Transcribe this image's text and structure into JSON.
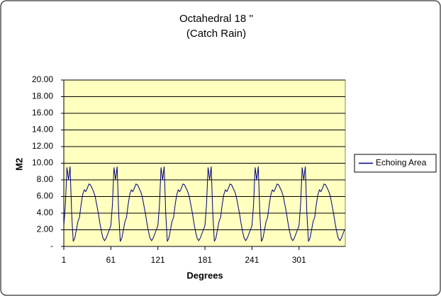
{
  "chart_data": {
    "type": "line",
    "title": "Octahedral 18 ''",
    "subtitle": "(Catch Rain)",
    "x_label": "Degrees",
    "y_label": "M2",
    "xlim": [
      1,
      360
    ],
    "xticks": [
      1,
      61,
      121,
      181,
      241,
      301
    ],
    "ylim": [
      0,
      20
    ],
    "yticks": [
      {
        "value": 0,
        "label": "-"
      },
      {
        "value": 2,
        "label": "2.00"
      },
      {
        "value": 4,
        "label": "4.00"
      },
      {
        "value": 6,
        "label": "6.00"
      },
      {
        "value": 8,
        "label": "8.00"
      },
      {
        "value": 10,
        "label": "10.00"
      },
      {
        "value": 12,
        "label": "12.00"
      },
      {
        "value": 14,
        "label": "14.00"
      },
      {
        "value": 16,
        "label": "16.00"
      },
      {
        "value": 18,
        "label": "18.00"
      },
      {
        "value": 20,
        "label": "20.00"
      }
    ],
    "grid": true,
    "legend": "right",
    "plot_background": "#ffffc0",
    "x": [
      1,
      3,
      5,
      7,
      9,
      11,
      13,
      15,
      17,
      19,
      21,
      23,
      25,
      27,
      29,
      31,
      33,
      35,
      37,
      39,
      41,
      43,
      45,
      47,
      49,
      51,
      53,
      55,
      57,
      59,
      61,
      63,
      65,
      67,
      69,
      71,
      73,
      75,
      77,
      79,
      81,
      83,
      85,
      87,
      89,
      91,
      93,
      95,
      97,
      99,
      101,
      103,
      105,
      107,
      109,
      111,
      113,
      115,
      117,
      119,
      121,
      123,
      125,
      127,
      129,
      131,
      133,
      135,
      137,
      139,
      141,
      143,
      145,
      147,
      149,
      151,
      153,
      155,
      157,
      159,
      161,
      163,
      165,
      167,
      169,
      171,
      173,
      175,
      177,
      179,
      181,
      183,
      185,
      187,
      189,
      191,
      193,
      195,
      197,
      199,
      201,
      203,
      205,
      207,
      209,
      211,
      213,
      215,
      217,
      219,
      221,
      223,
      225,
      227,
      229,
      231,
      233,
      235,
      237,
      239,
      241,
      243,
      245,
      247,
      249,
      251,
      253,
      255,
      257,
      259,
      261,
      263,
      265,
      267,
      269,
      271,
      273,
      275,
      277,
      279,
      281,
      283,
      285,
      287,
      289,
      291,
      293,
      295,
      297,
      299,
      301,
      303,
      305,
      307,
      309,
      311,
      313,
      315,
      317,
      319,
      321,
      323,
      325,
      327,
      329,
      331,
      333,
      335,
      337,
      339,
      341,
      343,
      345,
      347,
      349,
      351,
      353,
      355,
      357,
      359
    ],
    "series": [
      {
        "name": "Echoing Area",
        "color": "#000080",
        "values": [
          2.5,
          5,
          9.5,
          8,
          9.6,
          4,
          0.6,
          1,
          2,
          3,
          3.5,
          5,
          6.2,
          6.8,
          6.6,
          7,
          7.5,
          7.4,
          7,
          6.6,
          6,
          5,
          4,
          2.8,
          1.8,
          1,
          0.7,
          1,
          1.5,
          2,
          2.5,
          5,
          9.5,
          8,
          9.6,
          4,
          0.6,
          1,
          2,
          3,
          3.5,
          5,
          6.2,
          6.8,
          6.6,
          7,
          7.5,
          7.4,
          7,
          6.6,
          6,
          5,
          4,
          2.8,
          1.8,
          1,
          0.7,
          1,
          1.5,
          2,
          2.5,
          5,
          9.5,
          8,
          9.6,
          4,
          0.6,
          1,
          2,
          3,
          3.5,
          5,
          6.2,
          6.8,
          6.6,
          7,
          7.5,
          7.4,
          7,
          6.6,
          6,
          5,
          4,
          2.8,
          1.8,
          1,
          0.7,
          1,
          1.5,
          2,
          2.5,
          5,
          9.5,
          8,
          9.6,
          4,
          0.6,
          1,
          2,
          3,
          3.5,
          5,
          6.2,
          6.8,
          6.6,
          7,
          7.5,
          7.4,
          7,
          6.6,
          6,
          5,
          4,
          2.8,
          1.8,
          1,
          0.7,
          1,
          1.5,
          2,
          2.5,
          5,
          9.5,
          8,
          9.6,
          4,
          0.6,
          1,
          2,
          3,
          3.5,
          5,
          6.2,
          6.8,
          6.6,
          7,
          7.5,
          7.4,
          7,
          6.6,
          6,
          5,
          4,
          2.8,
          1.8,
          1,
          0.7,
          1,
          1.5,
          2,
          2.5,
          5,
          9.5,
          8,
          9.6,
          4,
          0.6,
          1,
          2,
          3,
          3.5,
          5,
          6.2,
          6.8,
          6.6,
          7,
          7.5,
          7.4,
          7,
          6.6,
          6,
          5,
          4,
          2.8,
          1.8,
          1,
          0.7,
          1,
          1.5,
          2
        ]
      }
    ]
  }
}
